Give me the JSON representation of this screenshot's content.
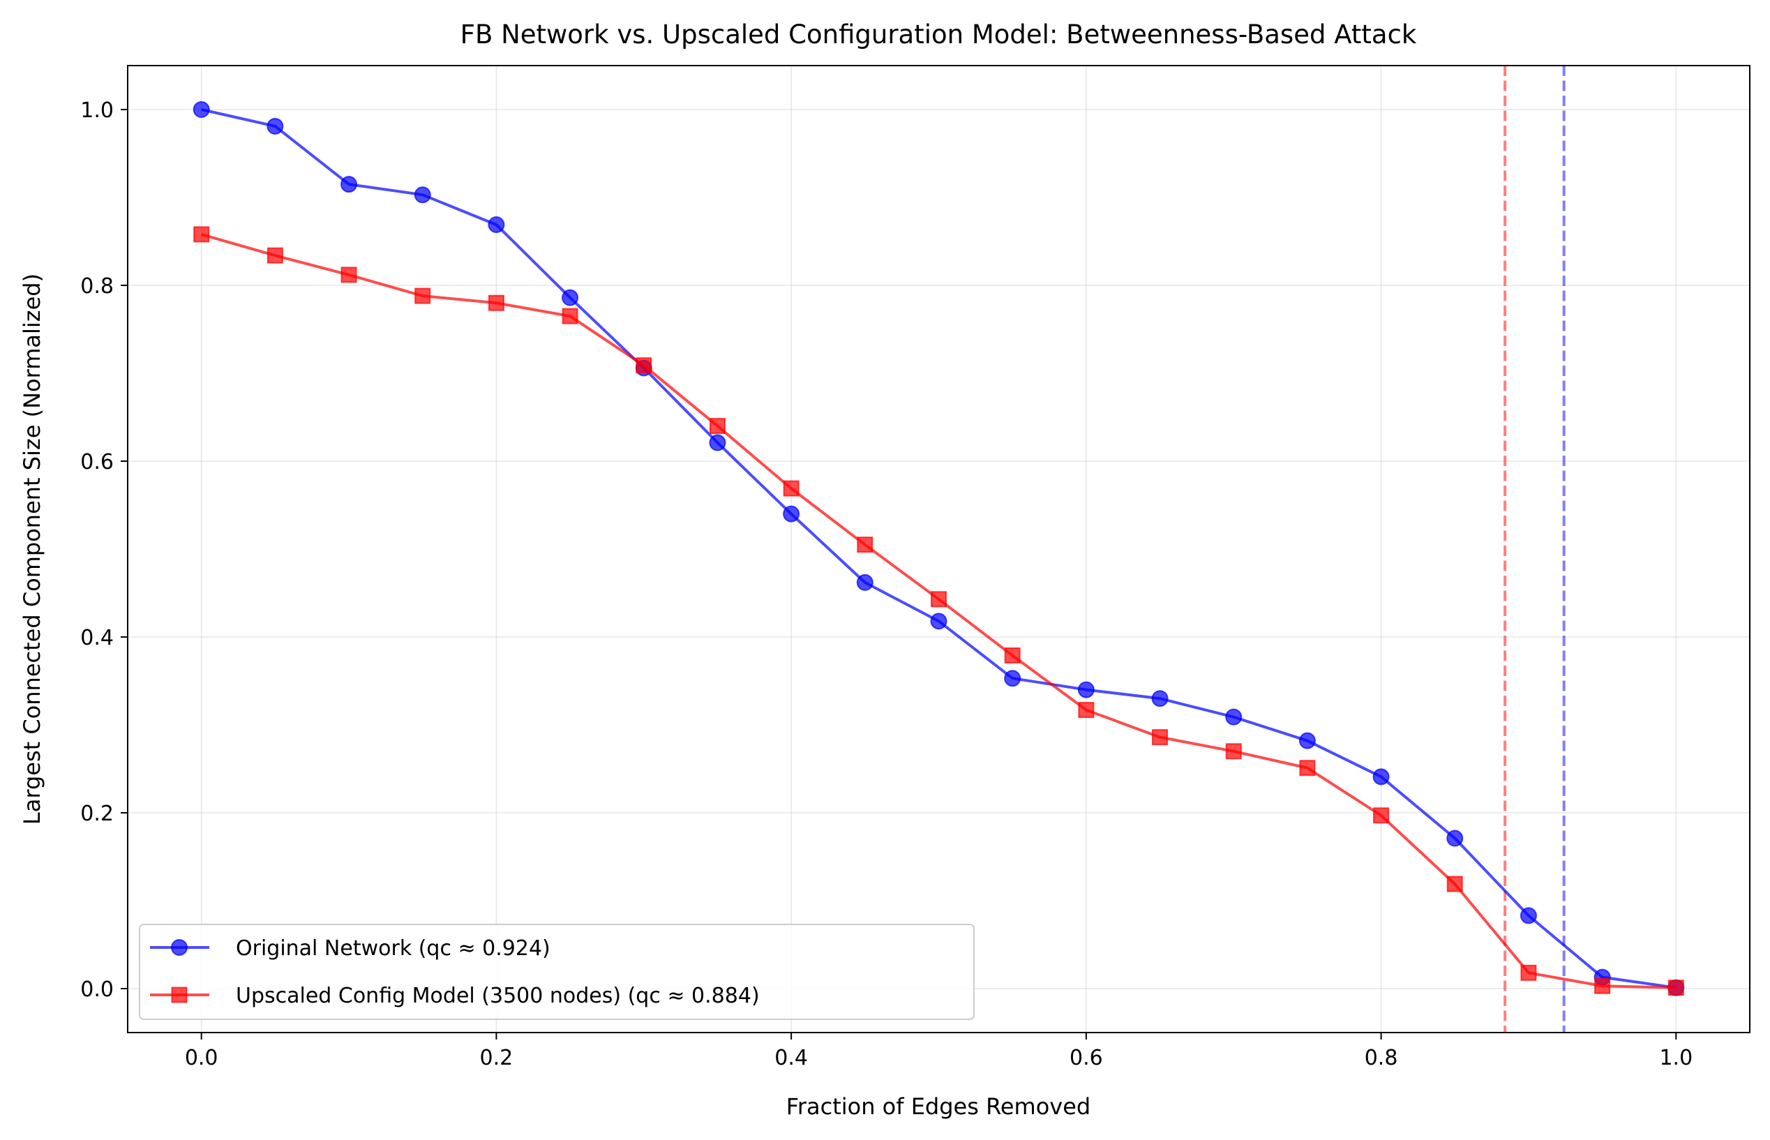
{
  "chart_data": {
    "type": "line",
    "title": "FB Network vs. Upscaled Configuration Model: Betweenness-Based Attack",
    "xlabel": "Fraction of Edges Removed",
    "ylabel": "Largest Connected Component Size (Normalized)",
    "xlim": [
      -0.05,
      1.05
    ],
    "ylim": [
      -0.05,
      1.05
    ],
    "xticks": [
      "0.0",
      "0.2",
      "0.4",
      "0.6",
      "0.8",
      "1.0"
    ],
    "yticks": [
      "0.0",
      "0.2",
      "0.4",
      "0.6",
      "0.8",
      "1.0"
    ],
    "grid": true,
    "legend_position": "lower-left",
    "x": [
      0.0,
      0.05,
      0.1,
      0.15,
      0.2,
      0.25,
      0.3,
      0.35,
      0.4,
      0.45,
      0.5,
      0.55,
      0.6,
      0.65,
      0.7,
      0.75,
      0.8,
      0.85,
      0.9,
      0.95,
      1.0
    ],
    "series": [
      {
        "name": "Original Network (qc ≈ 0.924)",
        "color": "#0000ff",
        "marker": "circle",
        "values": [
          1.0,
          0.981,
          0.915,
          0.903,
          0.869,
          0.786,
          0.706,
          0.621,
          0.54,
          0.462,
          0.418,
          0.353,
          0.34,
          0.33,
          0.309,
          0.282,
          0.241,
          0.171,
          0.083,
          0.013,
          0.001
        ]
      },
      {
        "name": "Upscaled Config Model (3500 nodes) (qc ≈ 0.884)",
        "color": "#ff0000",
        "marker": "square",
        "values": [
          0.858,
          0.834,
          0.812,
          0.788,
          0.78,
          0.765,
          0.709,
          0.64,
          0.569,
          0.505,
          0.443,
          0.379,
          0.317,
          0.286,
          0.27,
          0.251,
          0.197,
          0.119,
          0.018,
          0.003,
          0.001
        ]
      }
    ],
    "vlines": [
      {
        "x": 0.884,
        "color": "#ff0000",
        "style": "dashed"
      },
      {
        "x": 0.924,
        "color": "#0000ff",
        "style": "dashed"
      }
    ]
  }
}
